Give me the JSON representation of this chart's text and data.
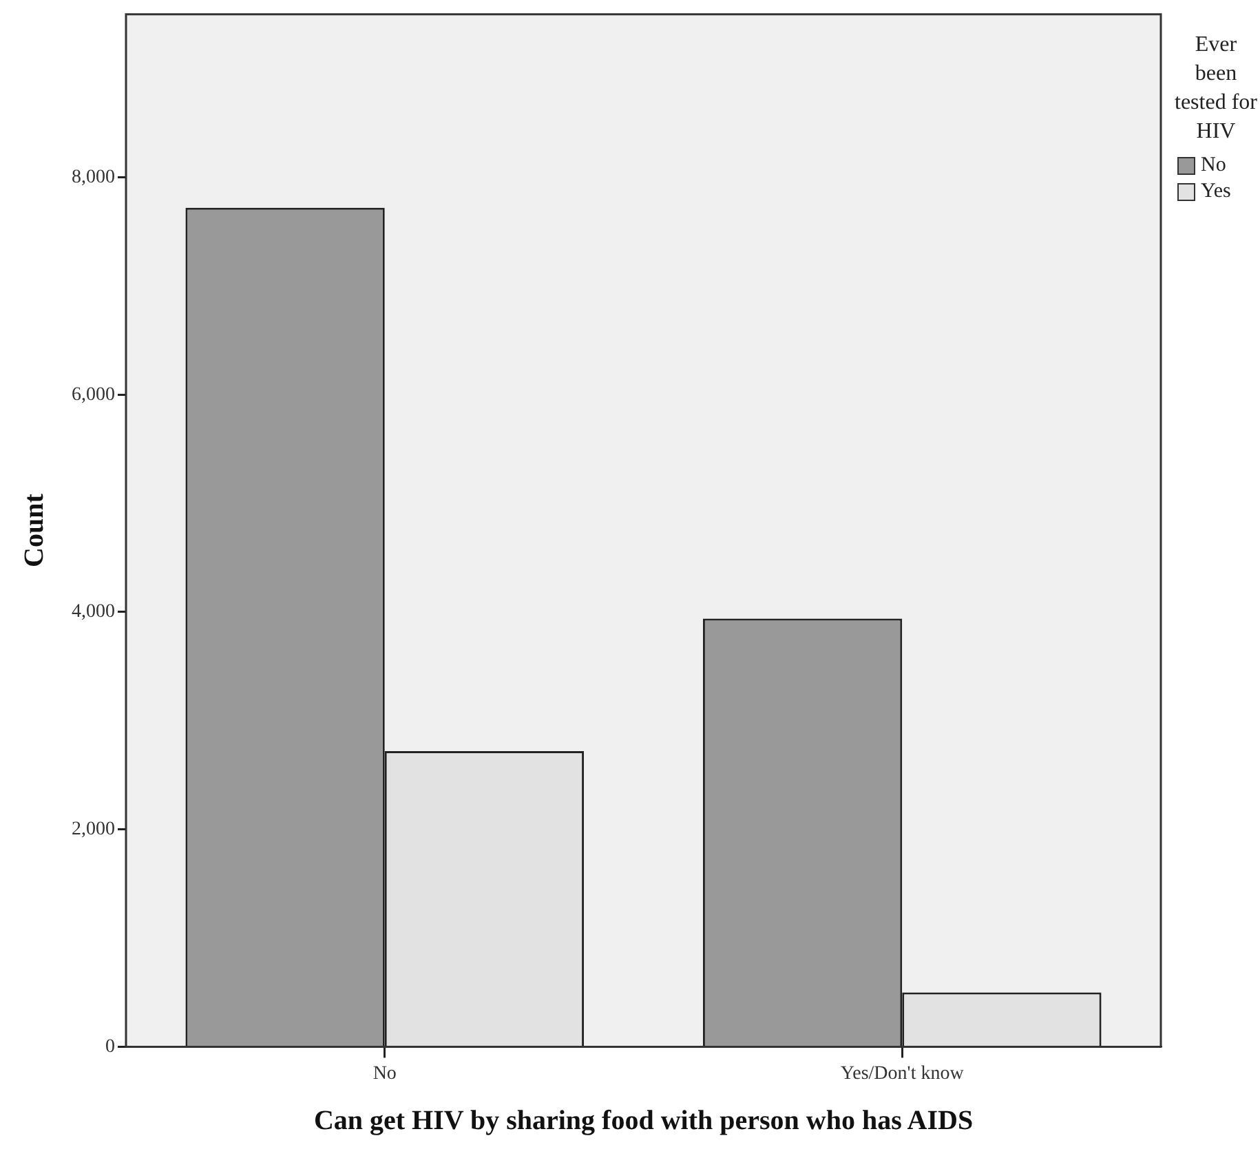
{
  "chart_data": {
    "type": "bar",
    "xlabel": "Can get HIV by sharing food with person who has AIDS",
    "ylabel": "Count",
    "legend_title": "Ever been tested for HIV",
    "categories": [
      "No",
      "Yes/Don't know"
    ],
    "series": [
      {
        "name": "No",
        "color": "#999999",
        "values": [
          7720,
          3940
        ]
      },
      {
        "name": "Yes",
        "color": "#e2e2e2",
        "values": [
          2720,
          500
        ]
      }
    ],
    "ylim": [
      0,
      9500
    ],
    "yticks": [
      {
        "value": 0,
        "label": "0"
      },
      {
        "value": 2000,
        "label": "2,000"
      },
      {
        "value": 4000,
        "label": "4,000"
      },
      {
        "value": 6000,
        "label": "6,000"
      },
      {
        "value": 8000,
        "label": "8,000"
      }
    ],
    "grid": false,
    "legend": "right"
  }
}
